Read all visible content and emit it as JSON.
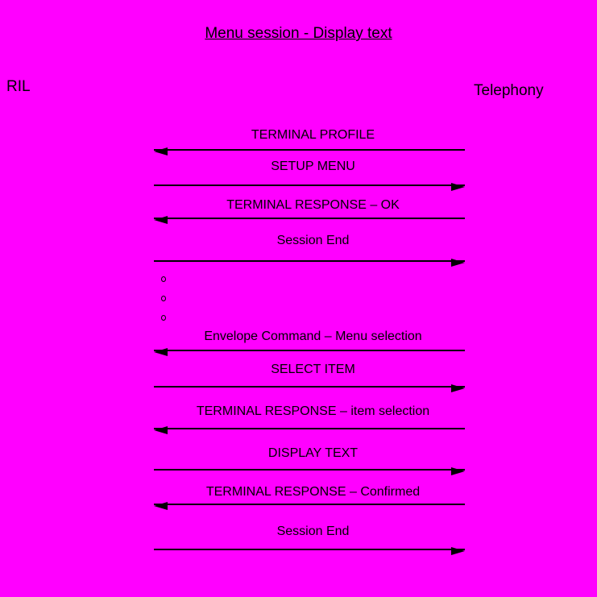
{
  "colors": {
    "background": "#ff00ff",
    "line": "#000000",
    "text": "#000000"
  },
  "title": "Menu session - Display text",
  "actors": {
    "left": "RIL",
    "right": "Telephony"
  },
  "messages": [
    {
      "label": "TERMINAL PROFILE",
      "direction": "left"
    },
    {
      "label": "SETUP MENU",
      "direction": "right"
    },
    {
      "label": "TERMINAL RESPONSE – OK",
      "direction": "left"
    },
    {
      "label": "Session End",
      "direction": "right"
    },
    {
      "label": "Envelope Command – Menu selection",
      "direction": "left"
    },
    {
      "label": "SELECT ITEM",
      "direction": "right"
    },
    {
      "label": "TERMINAL RESPONSE – item selection",
      "direction": "left"
    },
    {
      "label": "DISPLAY TEXT",
      "direction": "right"
    },
    {
      "label": "TERMINAL RESPONSE – Confirmed",
      "direction": "left"
    },
    {
      "label": "Session End",
      "direction": "right"
    }
  ],
  "continuation_dots": 3
}
